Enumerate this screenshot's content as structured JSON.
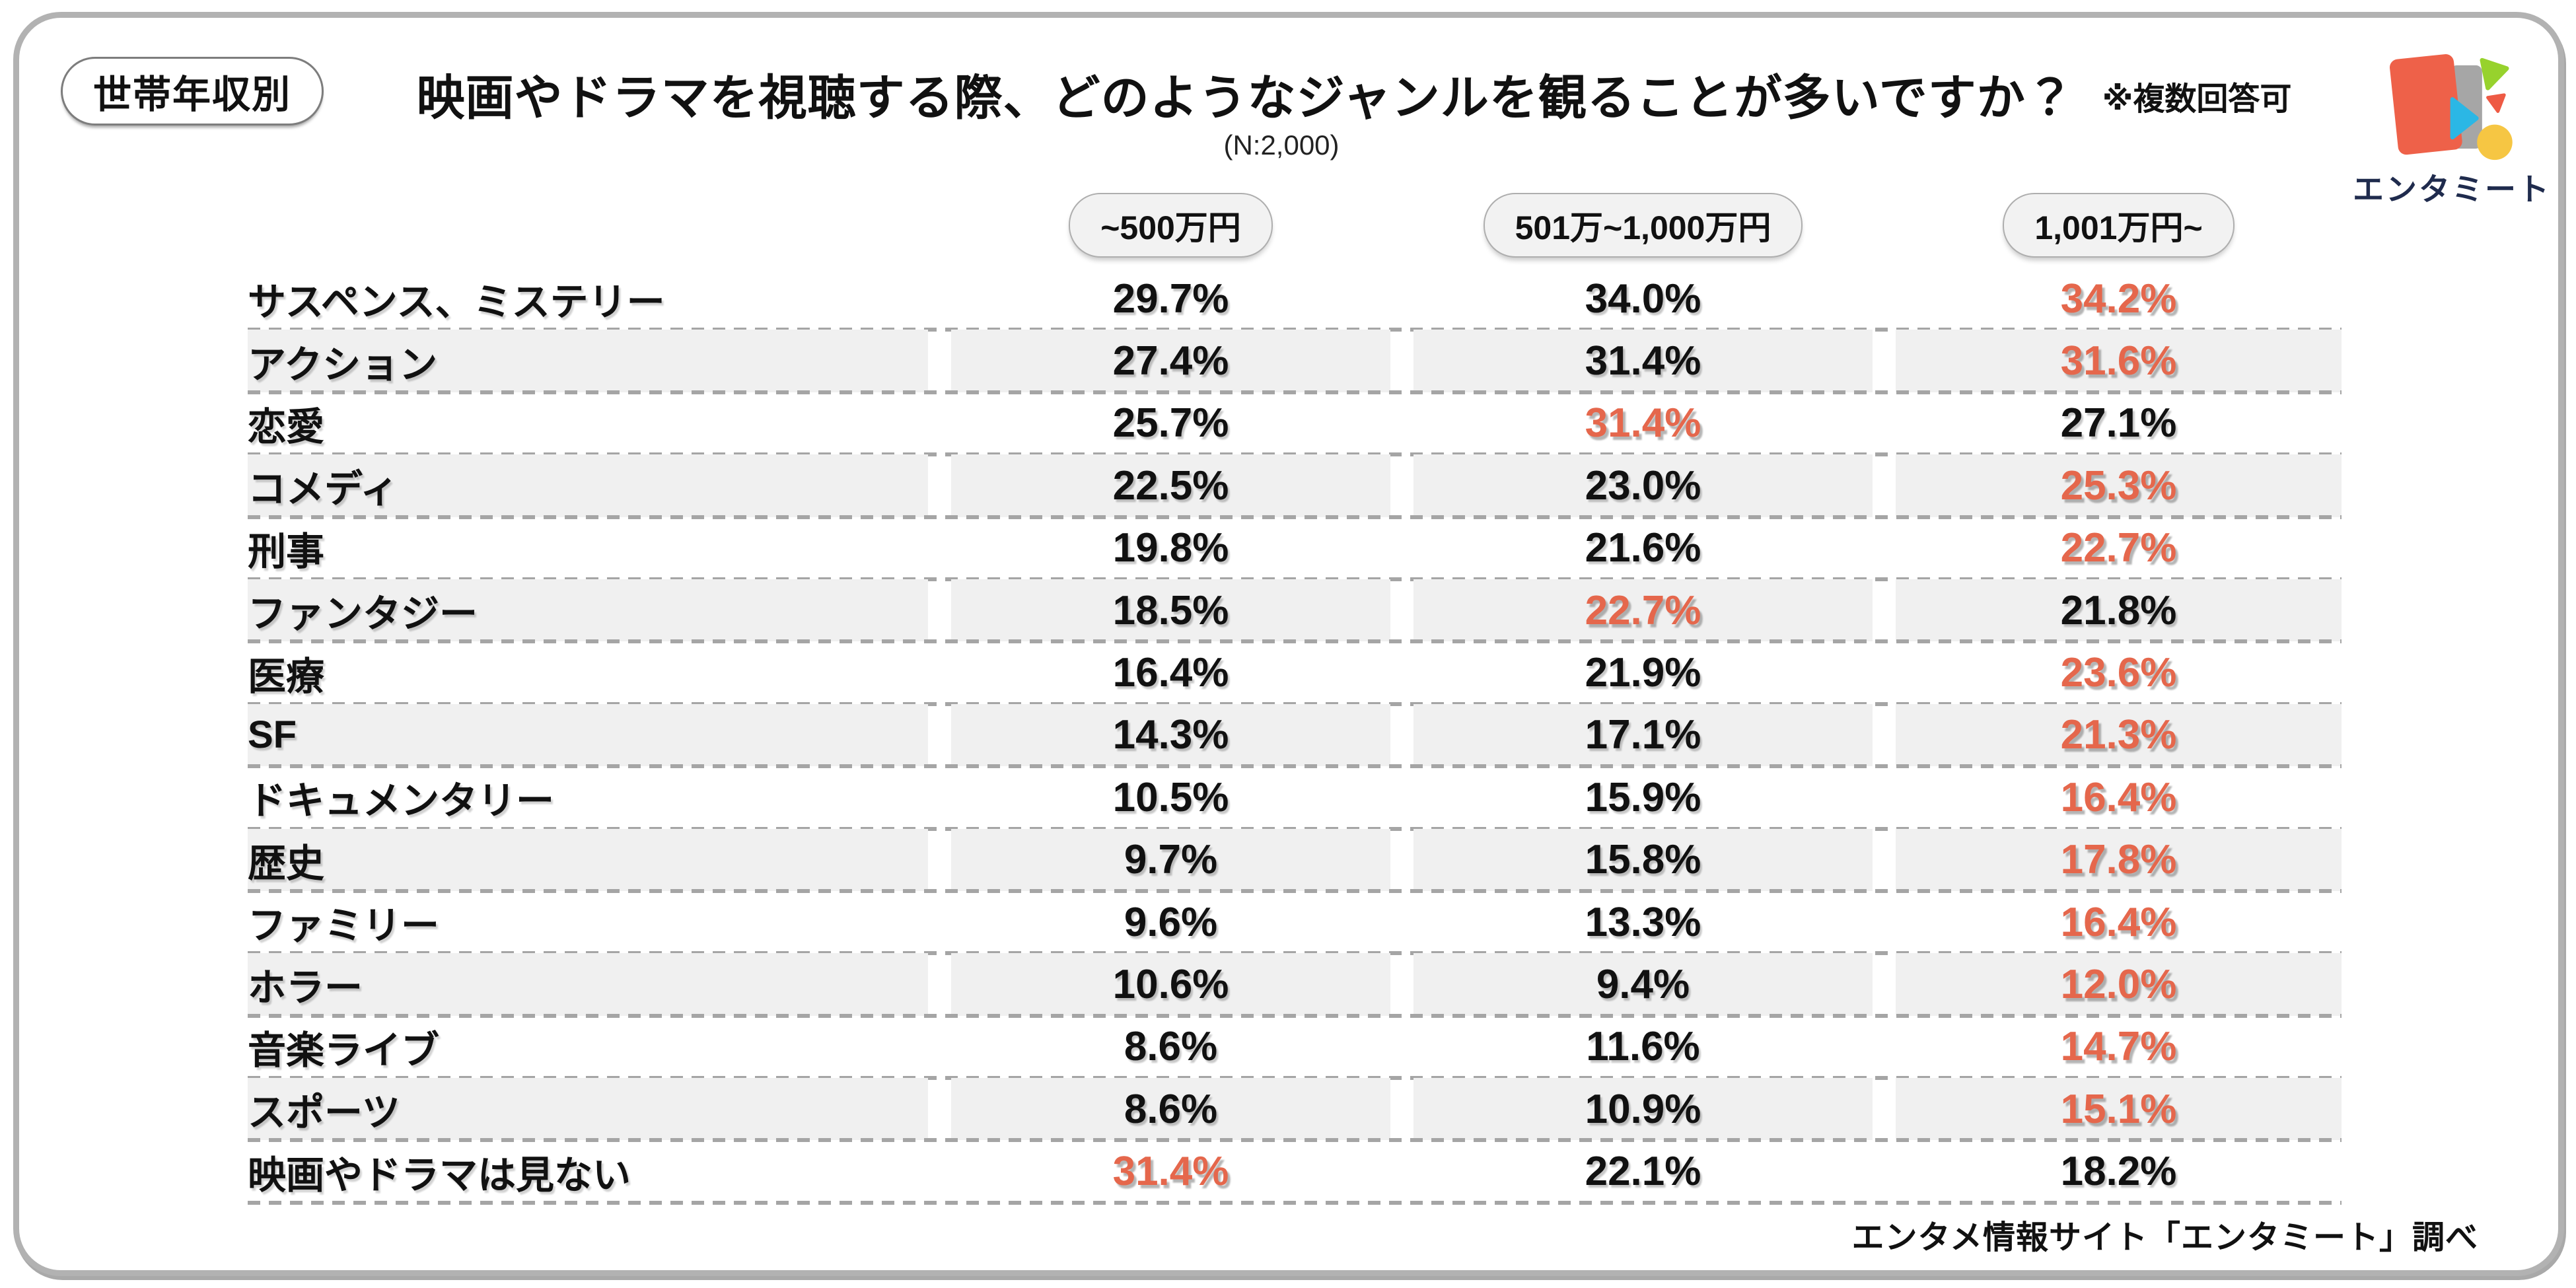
{
  "page": {
    "category_badge": "世帯年収別",
    "title": "映画やドラマを視聴する際、どのようなジャンルを観ることが多いですか？",
    "note": "※複数回答可",
    "sample_size": "(N:2,000)",
    "source": "エンタメ情報サイト「エンタミート」調べ",
    "logo_text": "エンタミート"
  },
  "colors": {
    "highlight": "#e5674c",
    "row_shade": "#f0f0f0",
    "dash_line": "#a5a5a5",
    "card_border": "#b2b2b2",
    "logo_navy": "#1f2b4d",
    "logo_door_red": "#ee6149",
    "logo_door_gray": "#a6a6a6",
    "logo_cyan": "#2bb7e5",
    "logo_green": "#97d22d",
    "logo_yellow": "#f6c643"
  },
  "chart_data": {
    "type": "table",
    "title": "映画やドラマを視聴する際、どのようなジャンルを観ることが多いですか？",
    "note": "※複数回答可",
    "sample": "(N:2,000)",
    "value_suffix": "%",
    "legend_position": "top",
    "categories": [
      "サスペンス、ミステリー",
      "アクション",
      "恋愛",
      "コメディ",
      "刑事",
      "ファンタジー",
      "医療",
      "SF",
      "ドキュメンタリー",
      "歴史",
      "ファミリー",
      "ホラー",
      "音楽ライブ",
      "スポーツ",
      "映画やドラマは見ない"
    ],
    "series": [
      {
        "name": "~500万円",
        "values": [
          29.7,
          27.4,
          25.7,
          22.5,
          19.8,
          18.5,
          16.4,
          14.3,
          10.5,
          9.7,
          9.6,
          10.6,
          8.6,
          8.6,
          31.4
        ]
      },
      {
        "name": "501万~1,000万円",
        "values": [
          34.0,
          31.4,
          31.4,
          23.0,
          21.6,
          22.7,
          21.9,
          17.1,
          15.9,
          15.8,
          13.3,
          9.4,
          11.6,
          10.9,
          22.1
        ]
      },
      {
        "name": "1,001万円~",
        "values": [
          34.2,
          31.6,
          27.1,
          25.3,
          22.7,
          21.8,
          23.6,
          21.3,
          16.4,
          17.8,
          16.4,
          12.0,
          14.7,
          15.1,
          18.2
        ]
      }
    ],
    "highlight_per_row": [
      2,
      2,
      1,
      2,
      2,
      1,
      2,
      2,
      2,
      2,
      2,
      2,
      2,
      2,
      0
    ],
    "highlight_color": "#e5674c"
  }
}
